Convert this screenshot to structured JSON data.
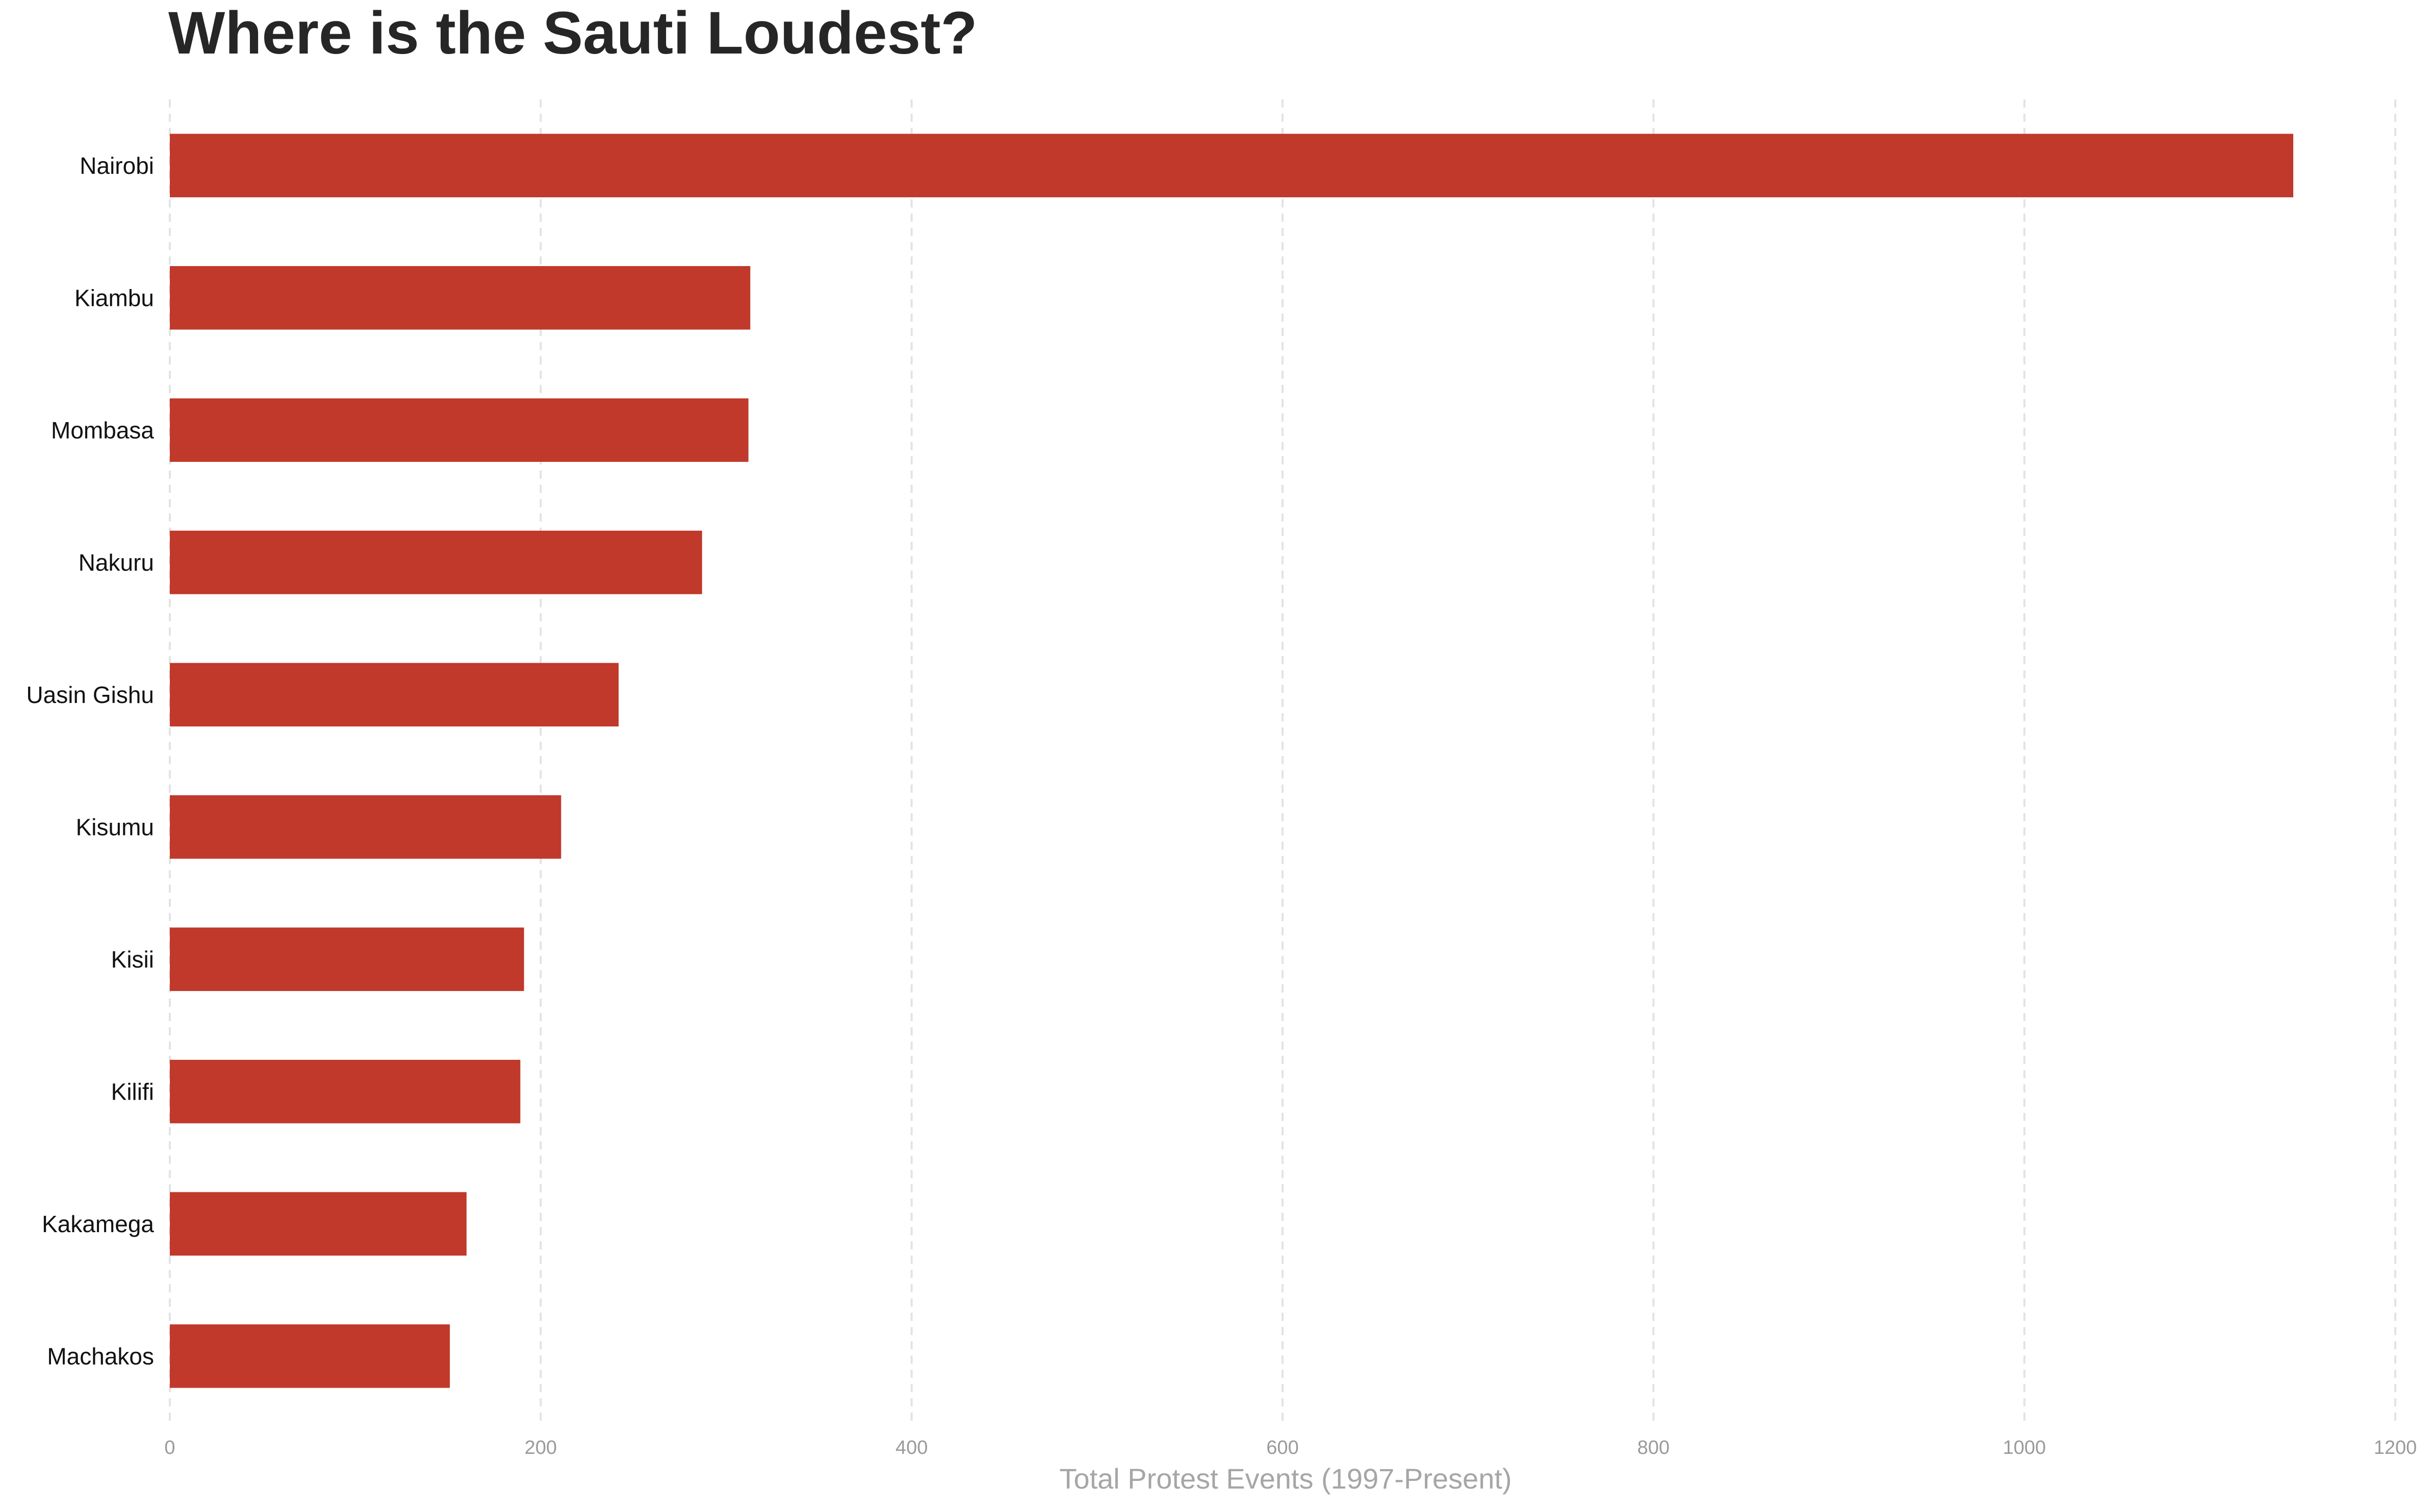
{
  "chart_data": {
    "type": "bar",
    "orientation": "horizontal",
    "title": "Where is the Sauti Loudest?",
    "xlabel": "Total Protest Events (1997-Present)",
    "ylabel": "",
    "categories": [
      "Nairobi",
      "Kiambu",
      "Mombasa",
      "Nakuru",
      "Uasin Gishu",
      "Kisumu",
      "Kisii",
      "Kilifi",
      "Kakamega",
      "Machakos"
    ],
    "values": [
      1145,
      313,
      312,
      287,
      242,
      211,
      191,
      189,
      160,
      151
    ],
    "xlim": [
      0,
      1200
    ],
    "xticks": [
      0,
      200,
      400,
      600,
      800,
      1000,
      1200
    ],
    "grid": "vertical-dashed",
    "bar_color": "#c0392b"
  }
}
